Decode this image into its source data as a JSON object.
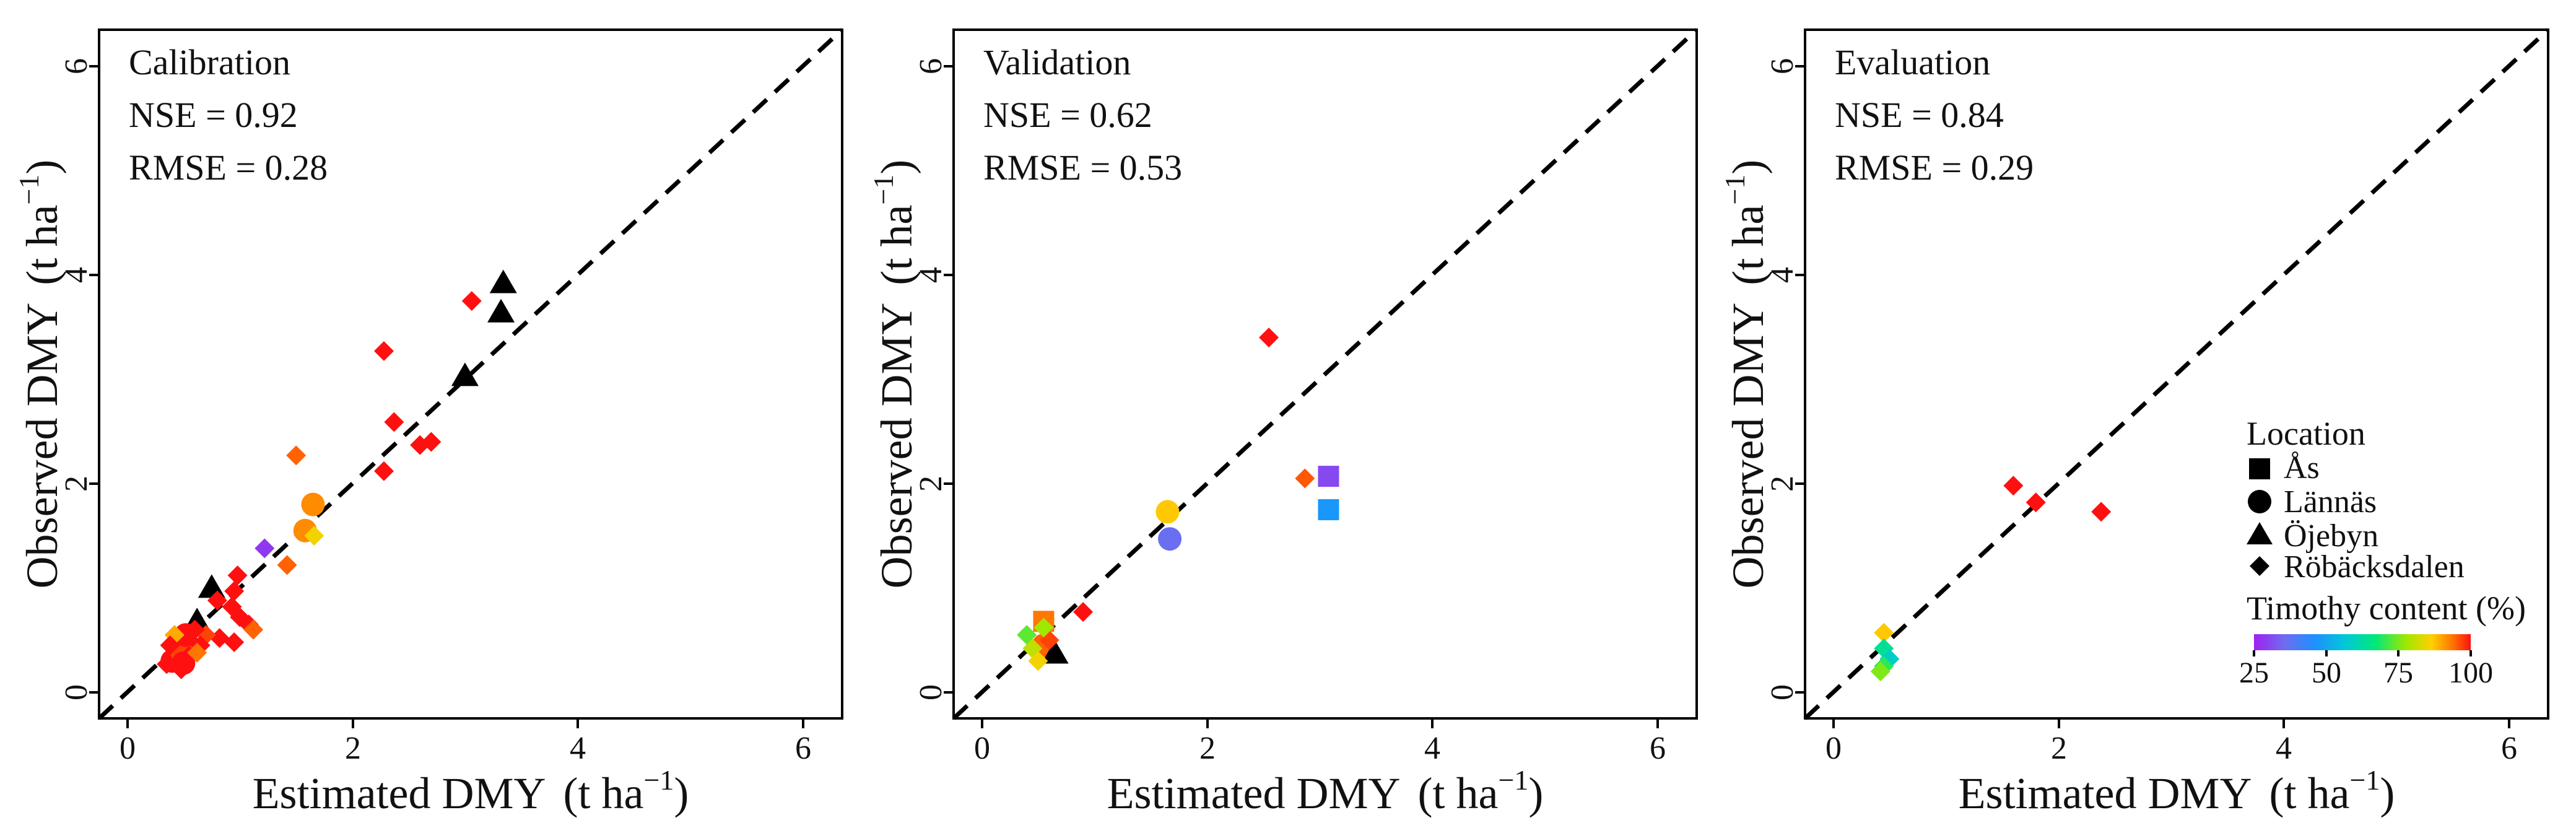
{
  "colors": {
    "black": "#000000",
    "timothy_scale": [
      "#a020f0",
      "#6f6cf0",
      "#1e90ff",
      "#00c8d8",
      "#00e87a",
      "#9ee800",
      "#ffd000",
      "#ff7000",
      "#ff1010"
    ]
  },
  "chart_data": [
    {
      "type": "scatter",
      "title": "Calibration",
      "stats": {
        "nse": "NSE = 0.92",
        "rmse": "RMSE = 0.28"
      },
      "xlabel": "Estimated DMY",
      "ylabel": "Observed DMY",
      "unit": {
        "open": "(t ha",
        "sup": "−1",
        "close": ")"
      },
      "xlim": [
        -0.25,
        6.35
      ],
      "ylim": [
        -0.25,
        6.35
      ],
      "ticks": [
        0,
        2,
        4,
        6
      ],
      "tick_labels": [
        "0",
        "2",
        "4",
        "6"
      ],
      "reference_line": "1:1",
      "points": [
        {
          "x": 0.75,
          "y": 1.0,
          "loc": "Öjebyn",
          "timothy": null
        },
        {
          "x": 0.62,
          "y": 0.68,
          "loc": "Öjebyn",
          "timothy": null
        },
        {
          "x": 3.0,
          "y": 3.03,
          "loc": "Öjebyn",
          "timothy": null
        },
        {
          "x": 3.32,
          "y": 3.64,
          "loc": "Öjebyn",
          "timothy": null
        },
        {
          "x": 3.34,
          "y": 3.92,
          "loc": "Öjebyn",
          "timothy": null
        },
        {
          "x": 0.45,
          "y": 0.4,
          "loc": "Öjebyn",
          "timothy": null
        },
        {
          "x": 0.55,
          "y": 0.52,
          "loc": "Öjebyn",
          "timothy": null
        },
        {
          "x": 1.65,
          "y": 1.8,
          "loc": "Lännäs",
          "timothy": 88
        },
        {
          "x": 1.58,
          "y": 1.55,
          "loc": "Lännäs",
          "timothy": 88
        },
        {
          "x": 0.4,
          "y": 0.3,
          "loc": "Lännäs",
          "timothy": 100
        },
        {
          "x": 0.48,
          "y": 0.4,
          "loc": "Lännäs",
          "timothy": 95
        },
        {
          "x": 0.52,
          "y": 0.55,
          "loc": "Lännäs",
          "timothy": 100
        },
        {
          "x": 0.5,
          "y": 0.28,
          "loc": "Lännäs",
          "timothy": 100
        },
        {
          "x": 1.22,
          "y": 1.38,
          "loc": "Röbäcksdalen",
          "timothy": 28
        },
        {
          "x": 1.66,
          "y": 1.5,
          "loc": "Röbäcksdalen",
          "timothy": 80
        },
        {
          "x": 1.5,
          "y": 2.27,
          "loc": "Röbäcksdalen",
          "timothy": 92
        },
        {
          "x": 1.42,
          "y": 1.22,
          "loc": "Röbäcksdalen",
          "timothy": 92
        },
        {
          "x": 2.28,
          "y": 3.27,
          "loc": "Röbäcksdalen",
          "timothy": 100
        },
        {
          "x": 3.06,
          "y": 3.75,
          "loc": "Röbäcksdalen",
          "timothy": 100
        },
        {
          "x": 2.37,
          "y": 2.59,
          "loc": "Röbäcksdalen",
          "timothy": 100
        },
        {
          "x": 2.28,
          "y": 2.12,
          "loc": "Röbäcksdalen",
          "timothy": 100
        },
        {
          "x": 2.6,
          "y": 2.37,
          "loc": "Röbäcksdalen",
          "timothy": 100
        },
        {
          "x": 2.7,
          "y": 2.4,
          "loc": "Röbäcksdalen",
          "timothy": 100
        },
        {
          "x": 0.98,
          "y": 1.12,
          "loc": "Röbäcksdalen",
          "timothy": 100
        },
        {
          "x": 0.95,
          "y": 0.97,
          "loc": "Röbäcksdalen",
          "timothy": 100
        },
        {
          "x": 0.93,
          "y": 0.82,
          "loc": "Röbäcksdalen",
          "timothy": 100
        },
        {
          "x": 1.0,
          "y": 0.72,
          "loc": "Röbäcksdalen",
          "timothy": 100
        },
        {
          "x": 1.08,
          "y": 0.65,
          "loc": "Röbäcksdalen",
          "timothy": 100
        },
        {
          "x": 1.12,
          "y": 0.6,
          "loc": "Röbäcksdalen",
          "timothy": 92
        },
        {
          "x": 0.8,
          "y": 0.88,
          "loc": "Röbäcksdalen",
          "timothy": 100
        },
        {
          "x": 0.82,
          "y": 0.52,
          "loc": "Röbäcksdalen",
          "timothy": 100
        },
        {
          "x": 0.95,
          "y": 0.48,
          "loc": "Röbäcksdalen",
          "timothy": 100
        },
        {
          "x": 0.7,
          "y": 0.55,
          "loc": "Röbäcksdalen",
          "timothy": 95
        },
        {
          "x": 0.65,
          "y": 0.45,
          "loc": "Röbäcksdalen",
          "timothy": 100
        },
        {
          "x": 0.6,
          "y": 0.6,
          "loc": "Röbäcksdalen",
          "timothy": 100
        },
        {
          "x": 0.55,
          "y": 0.35,
          "loc": "Röbäcksdalen",
          "timothy": 100
        },
        {
          "x": 0.62,
          "y": 0.38,
          "loc": "Röbäcksdalen",
          "timothy": 90
        },
        {
          "x": 0.42,
          "y": 0.55,
          "loc": "Röbäcksdalen",
          "timothy": 85
        },
        {
          "x": 0.35,
          "y": 0.27,
          "loc": "Röbäcksdalen",
          "timothy": 100
        },
        {
          "x": 0.38,
          "y": 0.45,
          "loc": "Röbäcksdalen",
          "timothy": 100
        },
        {
          "x": 0.48,
          "y": 0.22,
          "loc": "Röbäcksdalen",
          "timothy": 100
        }
      ]
    },
    {
      "type": "scatter",
      "title": "Validation",
      "stats": {
        "nse": "NSE = 0.62",
        "rmse": "RMSE = 0.53"
      },
      "xlabel": "Estimated DMY",
      "ylabel": "Observed DMY",
      "unit": {
        "open": "(t ha",
        "sup": "−1",
        "close": ")"
      },
      "xlim": [
        -0.25,
        6.35
      ],
      "ylim": [
        -0.25,
        6.35
      ],
      "ticks": [
        0,
        2,
        4,
        6
      ],
      "tick_labels": [
        "0",
        "2",
        "4",
        "6"
      ],
      "reference_line": "1:1",
      "points": [
        {
          "x": 3.08,
          "y": 2.07,
          "loc": "Ås",
          "timothy": 30
        },
        {
          "x": 3.08,
          "y": 1.75,
          "loc": "Ås",
          "timothy": 45
        },
        {
          "x": 0.55,
          "y": 0.68,
          "loc": "Ås",
          "timothy": 90
        },
        {
          "x": 1.65,
          "y": 1.73,
          "loc": "Lännäs",
          "timothy": 82
        },
        {
          "x": 1.67,
          "y": 1.47,
          "loc": "Lännäs",
          "timothy": 35
        },
        {
          "x": 0.55,
          "y": 0.45,
          "loc": "Lännäs",
          "timothy": 92
        },
        {
          "x": 0.65,
          "y": 0.37,
          "loc": "Öjebyn",
          "timothy": null
        },
        {
          "x": 2.55,
          "y": 3.4,
          "loc": "Röbäcksdalen",
          "timothy": 100
        },
        {
          "x": 2.87,
          "y": 2.05,
          "loc": "Röbäcksdalen",
          "timothy": 93
        },
        {
          "x": 0.9,
          "y": 0.77,
          "loc": "Röbäcksdalen",
          "timothy": 100
        },
        {
          "x": 0.6,
          "y": 0.5,
          "loc": "Röbäcksdalen",
          "timothy": 95
        },
        {
          "x": 0.4,
          "y": 0.55,
          "loc": "Röbäcksdalen",
          "timothy": 68
        },
        {
          "x": 0.45,
          "y": 0.42,
          "loc": "Röbäcksdalen",
          "timothy": 75
        },
        {
          "x": 0.5,
          "y": 0.3,
          "loc": "Röbäcksdalen",
          "timothy": 80
        },
        {
          "x": 0.55,
          "y": 0.62,
          "loc": "Röbäcksdalen",
          "timothy": 72
        }
      ]
    },
    {
      "type": "scatter",
      "title": "Evaluation",
      "stats": {
        "nse": "NSE = 0.84",
        "rmse": "RMSE = 0.29"
      },
      "xlabel": "Estimated DMY",
      "ylabel": "Observed DMY",
      "unit": {
        "open": "(t ha",
        "sup": "−1",
        "close": ")"
      },
      "xlim": [
        -0.25,
        6.35
      ],
      "ylim": [
        -0.25,
        6.35
      ],
      "ticks": [
        0,
        2,
        4,
        6
      ],
      "tick_labels": [
        "0",
        "2",
        "4",
        "6"
      ],
      "reference_line": "1:1",
      "points": [
        {
          "x": 1.6,
          "y": 1.98,
          "loc": "Röbäcksdalen",
          "timothy": 100
        },
        {
          "x": 1.8,
          "y": 1.82,
          "loc": "Röbäcksdalen",
          "timothy": 100
        },
        {
          "x": 2.38,
          "y": 1.73,
          "loc": "Röbäcksdalen",
          "timothy": 100
        },
        {
          "x": 0.45,
          "y": 0.57,
          "loc": "Röbäcksdalen",
          "timothy": 82
        },
        {
          "x": 0.45,
          "y": 0.42,
          "loc": "Röbäcksdalen",
          "timothy": 60
        },
        {
          "x": 0.5,
          "y": 0.32,
          "loc": "Röbäcksdalen",
          "timothy": 55
        },
        {
          "x": 0.45,
          "y": 0.25,
          "loc": "Röbäcksdalen",
          "timothy": 65
        },
        {
          "x": 0.42,
          "y": 0.2,
          "loc": "Röbäcksdalen",
          "timothy": 70
        }
      ],
      "legend": {
        "placement": "bottom-right",
        "location_title": "Location",
        "locations": [
          {
            "label": "Ås",
            "shape": "square"
          },
          {
            "label": "Lännäs",
            "shape": "circle"
          },
          {
            "label": "Öjebyn",
            "shape": "triangle"
          },
          {
            "label": "Röbäcksdalen",
            "shape": "diamond"
          }
        ],
        "colorbar_title": "Timothy content (%)",
        "colorbar_range": [
          25,
          100
        ],
        "colorbar_ticks": [
          25,
          50,
          75,
          100
        ],
        "colorbar_tick_labels": [
          "25",
          "50",
          "75",
          "100"
        ]
      }
    }
  ]
}
